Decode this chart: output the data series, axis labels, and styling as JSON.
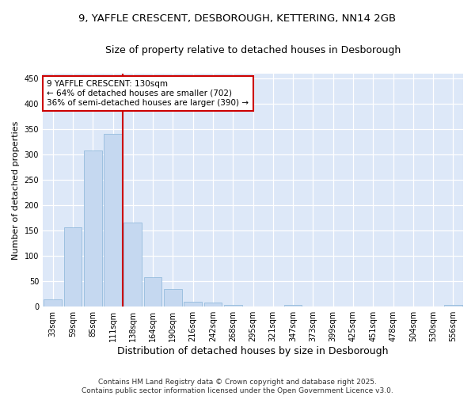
{
  "title_line1": "9, YAFFLE CRESCENT, DESBOROUGH, KETTERING, NN14 2GB",
  "title_line2": "Size of property relative to detached houses in Desborough",
  "xlabel": "Distribution of detached houses by size in Desborough",
  "ylabel": "Number of detached properties",
  "categories": [
    "33sqm",
    "59sqm",
    "85sqm",
    "111sqm",
    "138sqm",
    "164sqm",
    "190sqm",
    "216sqm",
    "242sqm",
    "268sqm",
    "295sqm",
    "321sqm",
    "347sqm",
    "373sqm",
    "399sqm",
    "425sqm",
    "451sqm",
    "478sqm",
    "504sqm",
    "530sqm",
    "556sqm"
  ],
  "values": [
    14,
    156,
    308,
    340,
    165,
    58,
    35,
    10,
    8,
    4,
    1,
    0,
    3,
    1,
    1,
    0,
    0,
    0,
    0,
    0,
    3
  ],
  "bar_color": "#c5d8f0",
  "bar_edge_color": "#89b4d9",
  "vline_x_idx": 3.5,
  "vline_color": "#cc0000",
  "annotation_text": "9 YAFFLE CRESCENT: 130sqm\n← 64% of detached houses are smaller (702)\n36% of semi-detached houses are larger (390) →",
  "annotation_box_edge": "#cc0000",
  "annotation_box_bg": "#ffffff",
  "ylim": [
    0,
    460
  ],
  "yticks": [
    0,
    50,
    100,
    150,
    200,
    250,
    300,
    350,
    400,
    450
  ],
  "plot_bg_color": "#dde8f8",
  "fig_bg_color": "#ffffff",
  "footer_text": "Contains HM Land Registry data © Crown copyright and database right 2025.\nContains public sector information licensed under the Open Government Licence v3.0.",
  "title_fontsize": 9.5,
  "subtitle_fontsize": 9,
  "xlabel_fontsize": 9,
  "ylabel_fontsize": 8,
  "tick_fontsize": 7,
  "annotation_fontsize": 7.5,
  "footer_fontsize": 6.5
}
